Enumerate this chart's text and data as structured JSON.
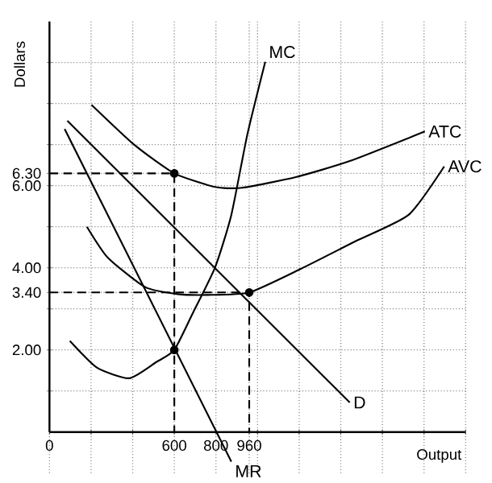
{
  "chart_data": {
    "type": "line",
    "xlabel": "Output",
    "ylabel": "Dollars",
    "xlim": [
      0,
      2000
    ],
    "ylim": [
      -1,
      10
    ],
    "xticks": [
      {
        "value": 0,
        "label": "0"
      },
      {
        "value": 200,
        "label": null
      },
      {
        "value": 400,
        "label": null
      },
      {
        "value": 600,
        "label": "600"
      },
      {
        "value": 800,
        "label": "800"
      },
      {
        "value": 960,
        "label": "960"
      },
      {
        "value": 1000,
        "label": null
      },
      {
        "value": 1200,
        "label": null
      },
      {
        "value": 1400,
        "label": null
      },
      {
        "value": 1600,
        "label": null
      },
      {
        "value": 1800,
        "label": null
      },
      {
        "value": 2000,
        "label": null
      }
    ],
    "yticks": [
      {
        "value": 1,
        "label": null
      },
      {
        "value": 2,
        "label": "2.00"
      },
      {
        "value": 3,
        "label": null
      },
      {
        "value": 3.4,
        "label": "3.40"
      },
      {
        "value": 4,
        "label": "4.00"
      },
      {
        "value": 5,
        "label": null
      },
      {
        "value": 6,
        "label": "6.00"
      },
      {
        "value": 6.3,
        "label": "6.30"
      },
      {
        "value": 7,
        "label": null
      },
      {
        "value": 8,
        "label": null
      },
      {
        "value": 9,
        "label": null
      }
    ],
    "grid": true,
    "series": [
      {
        "name": "MC",
        "color": "#000000",
        "x": [
          98,
          228,
          383,
          512,
          600,
          693,
          796,
          874,
          951,
          1037
        ],
        "values": [
          2.22,
          1.57,
          1.31,
          1.7,
          2.0,
          2.94,
          4.01,
          5.29,
          7.25,
          9.02
        ]
      },
      {
        "name": "ATC",
        "color": "#000000",
        "x": [
          202,
          409,
          600,
          796,
          926,
          1184,
          1443,
          1804
        ],
        "values": [
          7.97,
          6.99,
          6.3,
          5.97,
          5.95,
          6.21,
          6.6,
          7.32
        ]
      },
      {
        "name": "AVC",
        "color": "#000000",
        "x": [
          180,
          280,
          460,
          616,
          760,
          960,
          1210,
          1468,
          1726,
          1897
        ],
        "values": [
          5.0,
          4.25,
          3.53,
          3.36,
          3.34,
          3.4,
          3.98,
          4.64,
          5.29,
          6.47
        ]
      },
      {
        "name": "D",
        "color": "#000000",
        "x": [
          86,
          1443
        ],
        "values": [
          7.58,
          0.72
        ]
      },
      {
        "name": "MR",
        "color": "#000000",
        "x": [
          73,
          874
        ],
        "values": [
          7.38,
          -0.72
        ]
      },
      {
        "type": "line",
        "line_style": "dashed",
        "color": "#000000",
        "x": [
          0,
          600,
          600
        ],
        "values": [
          6.3,
          6.3,
          0
        ]
      },
      {
        "type": "line",
        "line_style": "dashed",
        "color": "#000000",
        "x": [
          0,
          960,
          960
        ],
        "values": [
          3.4,
          3.4,
          0
        ]
      },
      {
        "type": "scatter",
        "color": "#000000",
        "x": [
          600,
          600,
          960
        ],
        "values": [
          6.3,
          2.0,
          3.4
        ]
      }
    ]
  }
}
